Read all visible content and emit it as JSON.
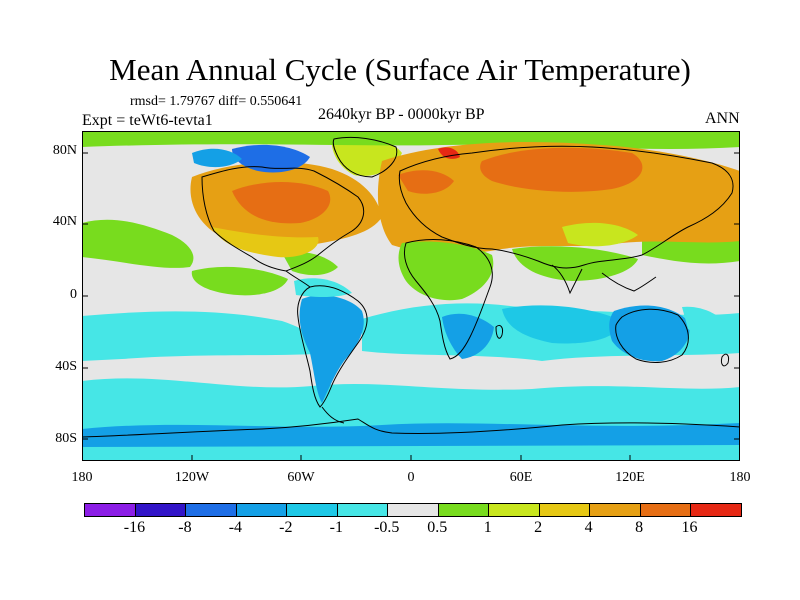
{
  "title": "Mean Annual Cycle (Surface Air Temperature)",
  "stats_text": "rmsd= 1.79767  diff= 0.550641",
  "period": "2640kyr BP - 0000kyr BP",
  "experiment": "Expt = teWt6-tevta1",
  "season": "ANN",
  "lat_labels": [
    "80N",
    "40N",
    "0",
    "40S",
    "80S"
  ],
  "lon_labels": [
    "180",
    "120W",
    "60W",
    "0",
    "60E",
    "120E",
    "180"
  ],
  "colorbar": {
    "colors": [
      "#8c1ee6",
      "#3214c8",
      "#1e6ee6",
      "#14a0e6",
      "#1ec8e6",
      "#46e6e6",
      "#e6e6e6",
      "#78dc1e",
      "#c8e61e",
      "#e6c814",
      "#e6a014",
      "#e66e14",
      "#e62814"
    ],
    "labels": [
      "-16",
      "-8",
      "-4",
      "-2",
      "-1",
      "-0.5",
      "0.5",
      "1",
      "2",
      "4",
      "8",
      "16"
    ]
  }
}
